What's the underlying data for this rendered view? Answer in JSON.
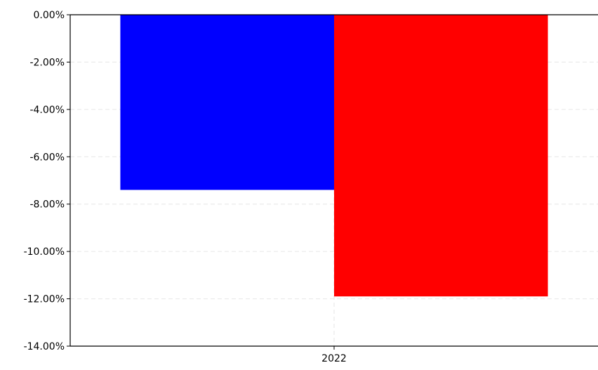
{
  "chart_data": {
    "type": "bar",
    "title": "",
    "xlabel": "",
    "ylabel": "",
    "categories": [
      "2022"
    ],
    "series": [
      {
        "values": [
          -7.4
        ],
        "color": "#0000ff"
      },
      {
        "values": [
          -11.9
        ],
        "color": "#ff0000"
      }
    ],
    "ylim": [
      -14,
      0
    ],
    "y_ticks": [
      {
        "value": 0,
        "label": "0.00%"
      },
      {
        "value": -2,
        "label": "-2.00%"
      },
      {
        "value": -4,
        "label": "-4.00%"
      },
      {
        "value": -6,
        "label": "-6.00%"
      },
      {
        "value": -8,
        "label": "-8.00%"
      },
      {
        "value": -10,
        "label": "-10.00%"
      },
      {
        "value": -12,
        "label": "-12.00%"
      },
      {
        "value": -14,
        "label": "-14.00%"
      }
    ],
    "grid": true,
    "legend": "none"
  }
}
